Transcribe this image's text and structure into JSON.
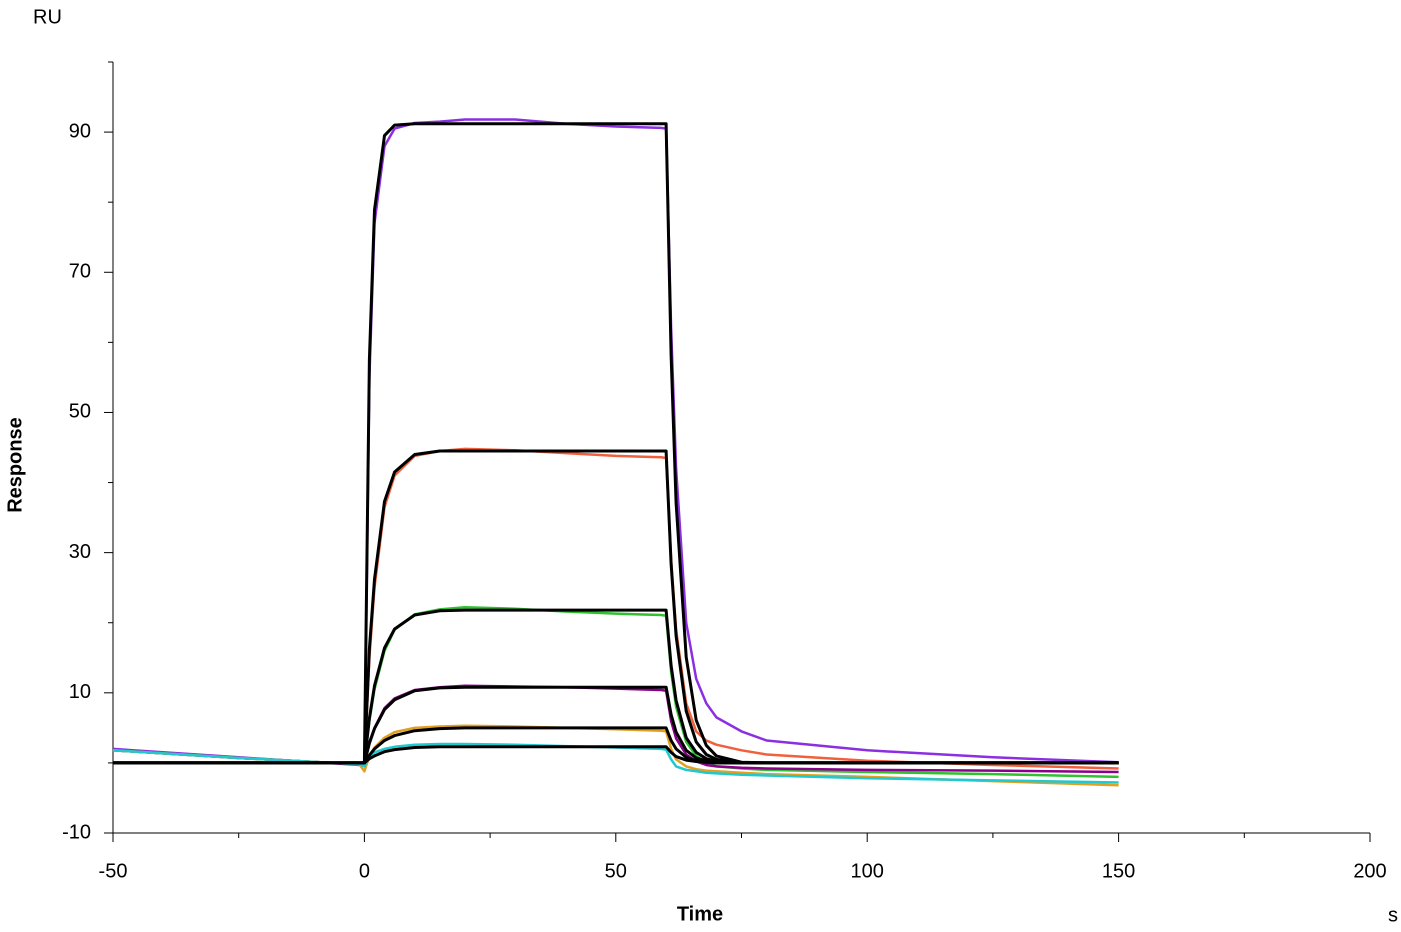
{
  "chart_data": {
    "type": "line",
    "y_unit_label": "RU",
    "x_unit_label": "s",
    "xlabel": "Time",
    "ylabel": "Response",
    "xlim": [
      -50,
      200
    ],
    "ylim": [
      -10,
      100
    ],
    "xticks": [
      -50,
      0,
      50,
      100,
      150,
      200
    ],
    "x_minor_ticks": [
      -25,
      25,
      75,
      125,
      175
    ],
    "yticks": [
      -10,
      10,
      30,
      50,
      70,
      90
    ],
    "y_minor_ticks": [
      0,
      20,
      40,
      60,
      80,
      100
    ],
    "x": [
      -50,
      -25,
      -1,
      0,
      1,
      2,
      4,
      6,
      10,
      15,
      20,
      30,
      40,
      50,
      59,
      60,
      61,
      62,
      64,
      66,
      68,
      70,
      75,
      80,
      100,
      125,
      150
    ],
    "series": [
      {
        "color": "#8b2fe0",
        "width": 2.5,
        "values": [
          2.0,
          0.8,
          -0.3,
          -0.2,
          55,
          77,
          88,
          90.5,
          91.3,
          91.5,
          91.8,
          91.8,
          91.2,
          90.8,
          90.6,
          90.5,
          62,
          42,
          20,
          12,
          8.5,
          6.5,
          4.5,
          3.2,
          1.8,
          0.8,
          0.1
        ]
      },
      {
        "color": "#f0603c",
        "width": 2.5,
        "values": [
          1.8,
          0.7,
          -0.2,
          0,
          15,
          25,
          36.5,
          41,
          43.8,
          44.5,
          44.8,
          44.6,
          44.2,
          43.8,
          43.6,
          43.5,
          29,
          19,
          8.5,
          4.5,
          3.2,
          2.6,
          1.8,
          1.2,
          0.3,
          -0.3,
          -0.8
        ]
      },
      {
        "color": "#2fc12f",
        "width": 2.5,
        "values": [
          1.8,
          0.7,
          -0.2,
          0,
          6,
          10.5,
          16,
          19,
          21.2,
          21.9,
          22.2,
          22.0,
          21.6,
          21.3,
          21.1,
          21.0,
          13,
          8,
          3,
          1,
          0,
          -0.5,
          -0.8,
          -1.0,
          -1.3,
          -1.6,
          -2.0
        ]
      },
      {
        "color": "#8b008b",
        "width": 2.5,
        "values": [
          1.8,
          0.7,
          -0.2,
          0,
          3,
          5,
          7.8,
          9.2,
          10.4,
          10.8,
          11.0,
          10.9,
          10.8,
          10.6,
          10.4,
          10.3,
          6,
          3.5,
          1.2,
          0.2,
          -0.3,
          -0.5,
          -0.7,
          -0.8,
          -1.0,
          -1.1,
          -1.3
        ]
      },
      {
        "color": "#e0a020",
        "width": 2.5,
        "values": [
          1.8,
          0.7,
          -0.2,
          -1.2,
          1.0,
          2.2,
          3.6,
          4.4,
          5.0,
          5.2,
          5.3,
          5.2,
          5.0,
          4.8,
          4.6,
          4.5,
          2,
          0.5,
          -0.5,
          -0.9,
          -1.1,
          -1.2,
          -1.4,
          -1.6,
          -2.0,
          -2.6,
          -3.2
        ]
      },
      {
        "color": "#20c8d0",
        "width": 2.5,
        "values": [
          1.8,
          0.7,
          -0.2,
          -0.5,
          0.8,
          1.5,
          2.0,
          2.3,
          2.6,
          2.7,
          2.7,
          2.6,
          2.4,
          2.2,
          2.0,
          1.9,
          0.5,
          -0.5,
          -1.0,
          -1.2,
          -1.4,
          -1.5,
          -1.7,
          -1.8,
          -2.2,
          -2.5,
          -2.8
        ]
      },
      {
        "color": "#000000",
        "width": 3,
        "values": [
          0,
          0,
          0,
          0,
          57.6,
          78.9,
          89.5,
          91.0,
          91.2,
          91.2,
          91.2,
          91.2,
          91.2,
          91.2,
          91.2,
          91.2,
          58.2,
          37.1,
          15.1,
          6.1,
          2.5,
          1.0,
          0.1,
          0,
          0,
          0,
          0
        ]
      },
      {
        "color": "#000000",
        "width": 3,
        "values": [
          0,
          0,
          0,
          0,
          16.3,
          26.2,
          37.3,
          41.5,
          44.0,
          44.5,
          44.5,
          44.5,
          44.5,
          44.5,
          44.5,
          44.5,
          28.4,
          18.1,
          7.4,
          3.0,
          1.2,
          0.5,
          0,
          0,
          0,
          0,
          0
        ]
      },
      {
        "color": "#000000",
        "width": 3,
        "values": [
          0,
          0,
          0,
          0,
          6.4,
          11.0,
          16.4,
          19.1,
          21.1,
          21.7,
          21.8,
          21.8,
          21.8,
          21.8,
          21.8,
          21.8,
          13.9,
          8.9,
          3.6,
          1.5,
          0.6,
          0.2,
          0,
          0,
          0,
          0,
          0
        ]
      },
      {
        "color": "#000000",
        "width": 3,
        "values": [
          0,
          0,
          0,
          0,
          2.8,
          4.9,
          7.6,
          9.0,
          10.3,
          10.7,
          10.8,
          10.8,
          10.8,
          10.8,
          10.8,
          10.8,
          6.9,
          4.4,
          1.8,
          0.7,
          0.3,
          0.1,
          0,
          0,
          0,
          0,
          0
        ]
      },
      {
        "color": "#000000",
        "width": 3,
        "values": [
          0,
          0,
          0,
          0,
          1.1,
          2.0,
          3.2,
          3.9,
          4.6,
          4.9,
          5.0,
          5.0,
          5.0,
          5.0,
          5.0,
          5.0,
          3.2,
          2.0,
          0.8,
          0.3,
          0.1,
          0,
          0,
          0,
          0,
          0,
          0
        ]
      },
      {
        "color": "#000000",
        "width": 3,
        "values": [
          0,
          0,
          0,
          0,
          0.6,
          1.0,
          1.6,
          1.9,
          2.2,
          2.3,
          2.3,
          2.3,
          2.3,
          2.3,
          2.3,
          2.3,
          1.5,
          0.9,
          0.4,
          0.2,
          0.1,
          0,
          0,
          0,
          0,
          0,
          0
        ]
      }
    ]
  }
}
